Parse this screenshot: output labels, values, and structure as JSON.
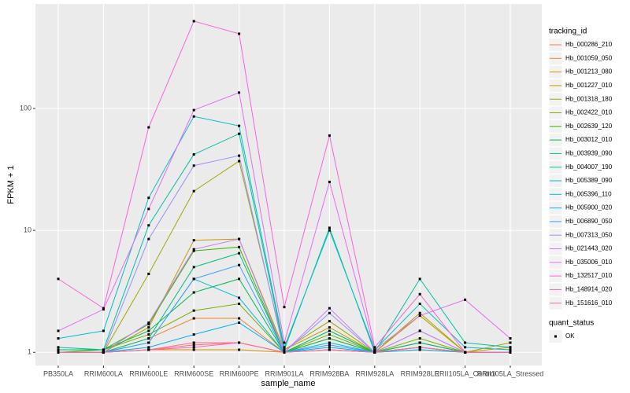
{
  "chart_data": {
    "type": "line",
    "x_label": "sample_name",
    "y_label": "FPKM + 1",
    "categories": [
      "PB350LA",
      "RRIM600LA",
      "RRIM600LE",
      "RRIM600SE",
      "RRIM600PE",
      "RRIM901LA",
      "RRIM928BA",
      "RRIM928LA",
      "RRIM928LE",
      "RRII105LA_Control",
      "RRII105LA_Stressed"
    ],
    "ylim": [
      0.78,
      720
    ],
    "yticks": [
      1,
      10,
      100
    ],
    "log_y": true,
    "grid": true,
    "legend_position": "right",
    "legend_title": "tracking_id",
    "point_legend": {
      "title": "quant_status",
      "label": "OK",
      "color": "#000000"
    },
    "series": [
      {
        "name": "Hb_000286_210",
        "color": "#F8766D",
        "values": [
          1.0,
          1.0,
          1.05,
          1.15,
          1.2,
          1.0,
          1.05,
          1.0,
          1.1,
          1.0,
          1.0
        ]
      },
      {
        "name": "Hb_001059_050",
        "color": "#EA8331",
        "values": [
          1.0,
          1.0,
          1.3,
          1.9,
          1.9,
          1.0,
          1.3,
          1.0,
          1.2,
          1.0,
          1.0
        ]
      },
      {
        "name": "Hb_001213_080",
        "color": "#D89000",
        "values": [
          1.0,
          1.0,
          1.05,
          1.05,
          1.05,
          1.0,
          1.05,
          1.0,
          1.05,
          1.0,
          1.0
        ]
      },
      {
        "name": "Hb_001227_010",
        "color": "#C09B00",
        "values": [
          1.0,
          1.0,
          1.6,
          8.3,
          8.5,
          1.05,
          1.6,
          1.0,
          2.0,
          1.0,
          1.1
        ]
      },
      {
        "name": "Hb_001318_180",
        "color": "#A3A500",
        "values": [
          1.0,
          1.0,
          4.4,
          21,
          37,
          1.05,
          1.8,
          1.0,
          2.1,
          1.0,
          1.2
        ]
      },
      {
        "name": "Hb_002422_010",
        "color": "#7CAE00",
        "values": [
          1.05,
          1.05,
          1.4,
          2.2,
          2.5,
          1.0,
          1.4,
          1.0,
          1.3,
          1.0,
          1.0
        ]
      },
      {
        "name": "Hb_002639_120",
        "color": "#39B600",
        "values": [
          1.0,
          1.05,
          1.7,
          6.8,
          7.3,
          1.0,
          1.5,
          1.0,
          1.2,
          1.0,
          1.0
        ]
      },
      {
        "name": "Hb_003012_010",
        "color": "#00BB4E",
        "values": [
          1.05,
          1.05,
          1.5,
          3.1,
          4.0,
          1.0,
          1.3,
          1.0,
          1.1,
          1.0,
          1.0
        ]
      },
      {
        "name": "Hb_003939_090",
        "color": "#00BF7D",
        "values": [
          1.0,
          1.0,
          1.3,
          5.0,
          6.5,
          1.0,
          1.5,
          1.0,
          1.2,
          1.0,
          1.0
        ]
      },
      {
        "name": "Hb_004007_190",
        "color": "#00C1A3",
        "values": [
          1.1,
          1.05,
          11,
          42,
          62,
          1.05,
          10.5,
          1.0,
          4.0,
          1.2,
          1.1
        ]
      },
      {
        "name": "Hb_005389_090",
        "color": "#00BFC4",
        "values": [
          1.3,
          1.5,
          18.5,
          86,
          72,
          1.1,
          10.0,
          1.05,
          2.5,
          1.1,
          1.05
        ]
      },
      {
        "name": "Hb_005396_110",
        "color": "#00BAE0",
        "values": [
          1.0,
          1.0,
          1.2,
          4.0,
          2.8,
          1.0,
          1.2,
          1.0,
          1.1,
          1.0,
          1.0
        ]
      },
      {
        "name": "Hb_005900_020",
        "color": "#00B0F6",
        "values": [
          1.0,
          1.0,
          1.1,
          1.4,
          1.75,
          1.0,
          1.1,
          1.0,
          1.05,
          1.0,
          1.0
        ]
      },
      {
        "name": "Hb_006890_050",
        "color": "#35A2FF",
        "values": [
          1.0,
          1.0,
          1.2,
          4.0,
          5.2,
          1.0,
          1.15,
          1.0,
          1.1,
          1.0,
          1.0
        ]
      },
      {
        "name": "Hb_007313_050",
        "color": "#9590FF",
        "values": [
          1.0,
          1.0,
          8.5,
          34,
          41,
          1.0,
          2.1,
          1.0,
          1.5,
          1.0,
          1.0
        ]
      },
      {
        "name": "Hb_021443_020",
        "color": "#C77CFF",
        "values": [
          1.0,
          1.0,
          1.75,
          7.0,
          8.5,
          1.0,
          2.3,
          1.0,
          1.5,
          1.0,
          1.0
        ]
      },
      {
        "name": "Hb_035006_010",
        "color": "#E76BF3",
        "values": [
          1.5,
          2.25,
          15,
          97,
          135,
          1.2,
          25,
          1.05,
          2.0,
          2.7,
          1.3
        ]
      },
      {
        "name": "Hb_132517_010",
        "color": "#FA62DB",
        "values": [
          4.0,
          2.3,
          70,
          520,
          410,
          2.35,
          60,
          1.1,
          3.0,
          1.0,
          1.0
        ]
      },
      {
        "name": "Hb_148914_020",
        "color": "#FF62BC",
        "values": [
          1.0,
          1.0,
          1.05,
          1.1,
          1.2,
          1.0,
          1.05,
          1.0,
          1.1,
          1.0,
          1.0
        ]
      },
      {
        "name": "Hb_151616_010",
        "color": "#FF6C91",
        "values": [
          1.0,
          1.0,
          1.05,
          1.2,
          1.2,
          1.0,
          1.05,
          1.0,
          1.1,
          1.0,
          1.0
        ]
      }
    ]
  }
}
